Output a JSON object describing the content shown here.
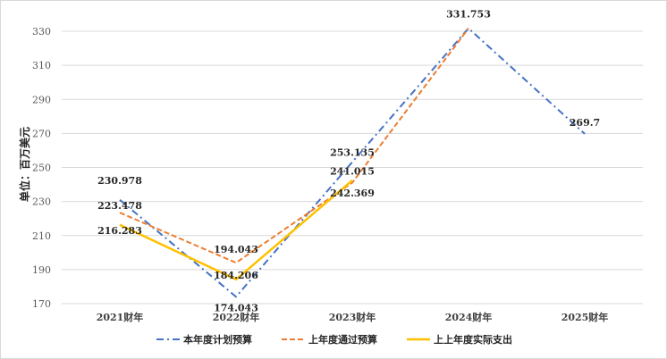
{
  "chart_data": {
    "type": "line",
    "categories": [
      "2021财年",
      "2022财年",
      "2023财年",
      "2024财年",
      "2025财年"
    ],
    "ylabel": "单位：百万美元",
    "ylim": [
      170,
      330
    ],
    "yticks": [
      170,
      190,
      210,
      230,
      250,
      270,
      290,
      310,
      330
    ],
    "grid": true,
    "legend_position": "bottom",
    "series": [
      {
        "name": "本年度计划预算",
        "values": [
          230.978,
          174.043,
          253.135,
          331.753,
          269.7
        ],
        "labels": [
          "230.978",
          "174.043",
          "253.135",
          "331.753",
          "269.7"
        ],
        "color": "#4472C4",
        "style": "dash-dot"
      },
      {
        "name": "上年度通过预算",
        "values": [
          223.478,
          194.043,
          241.015,
          331.753,
          null
        ],
        "labels": [
          "223.478",
          "194.043",
          "241.015",
          "",
          ""
        ],
        "color": "#ED7D31",
        "style": "dashed"
      },
      {
        "name": "上上年度实际支出",
        "values": [
          216.283,
          184.206,
          242.369,
          null,
          null
        ],
        "labels": [
          "216.283",
          "184.206",
          "242.369",
          "",
          ""
        ],
        "color": "#FFC000",
        "style": "solid"
      }
    ]
  }
}
